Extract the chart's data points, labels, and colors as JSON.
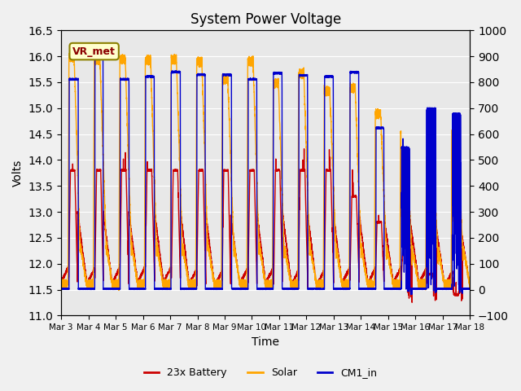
{
  "title": "System Power Voltage",
  "xlabel": "Time",
  "ylabel_left": "Volts",
  "ylim_left": [
    11.0,
    16.5
  ],
  "ylim_right": [
    -100,
    1000
  ],
  "yticks_left": [
    11.0,
    11.5,
    12.0,
    12.5,
    13.0,
    13.5,
    14.0,
    14.5,
    15.0,
    15.5,
    16.0,
    16.5
  ],
  "yticks_right": [
    -100,
    0,
    100,
    200,
    300,
    400,
    500,
    600,
    700,
    800,
    900,
    1000
  ],
  "xtick_labels": [
    "Mar 3",
    "Mar 4",
    "Mar 5",
    "Mar 6",
    "Mar 7",
    "Mar 8",
    "Mar 9",
    "Mar 10",
    "Mar 11",
    "Mar 12",
    "Mar 13",
    "Mar 14",
    "Mar 15",
    "Mar 16",
    "Mar 17",
    "Mar 18"
  ],
  "fig_facecolor": "#f0f0f0",
  "ax_facecolor": "#e8e8e8",
  "annotation_text": "VR_met",
  "annotation_facecolor": "#ffffcc",
  "annotation_edgecolor": "#8B8000",
  "battery_color": "#cc0000",
  "solar_color": "#ffa500",
  "cm1_color": "#0000cc",
  "legend_labels": [
    "23x Battery",
    "Solar",
    "CM1_in"
  ],
  "line_width": 1.0,
  "n_days": 16,
  "pts_per_day": 288
}
